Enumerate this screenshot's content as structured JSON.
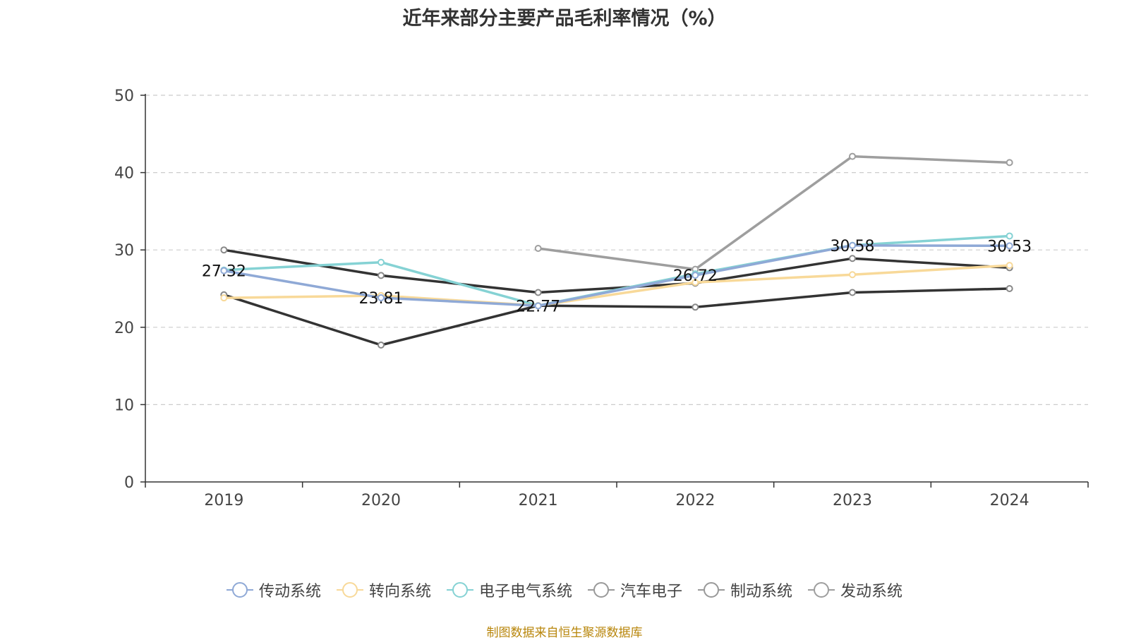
{
  "chart_data": {
    "type": "line",
    "title": "近年来部分主要产品毛利率情况（%）",
    "categories": [
      "2019",
      "2020",
      "2021",
      "2022",
      "2023",
      "2024"
    ],
    "ylim": [
      0,
      50
    ],
    "yticks": [
      0,
      10,
      20,
      30,
      40,
      50
    ],
    "grid": true,
    "legend_position": "bottom",
    "series": [
      {
        "name": "传动系统",
        "color": "#8fa9d6",
        "values": [
          27.32,
          23.81,
          22.77,
          26.72,
          30.58,
          30.53
        ],
        "labels": [
          "27.32",
          "23.81",
          "22.77",
          "26.72",
          "30.58",
          "30.53"
        ]
      },
      {
        "name": "转向系统",
        "color": "#f8d999",
        "values": [
          23.8,
          24.1,
          22.8,
          25.8,
          26.8,
          28.0
        ],
        "labels": null
      },
      {
        "name": "电子电气系统",
        "color": "#85d2d4",
        "values": [
          27.4,
          28.4,
          22.8,
          26.9,
          30.6,
          31.8
        ],
        "labels": null
      },
      {
        "name": "汽车电子",
        "color": "#333333",
        "values": [
          30.0,
          26.7,
          24.5,
          25.7,
          28.9,
          27.7
        ],
        "labels": null
      },
      {
        "name": "制动系统",
        "color": "#333333",
        "values": [
          24.2,
          17.7,
          22.8,
          22.6,
          24.5,
          25.0
        ],
        "labels": null
      },
      {
        "name": "发动系统",
        "color": "#9e9e9e",
        "values": [
          null,
          null,
          30.2,
          27.5,
          42.1,
          41.3
        ],
        "labels": null
      }
    ]
  },
  "source_note": "制图数据来自恒生聚源数据库"
}
